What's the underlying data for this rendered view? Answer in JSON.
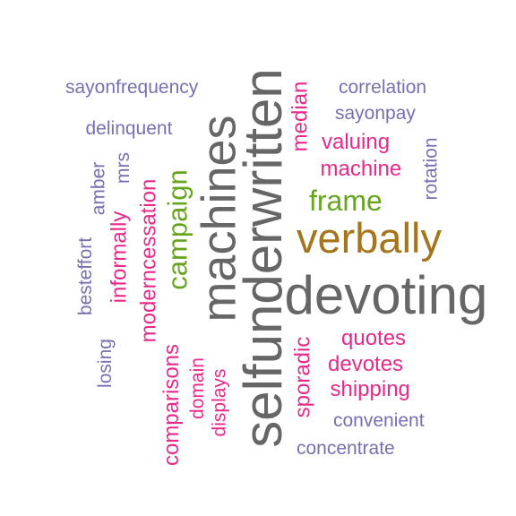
{
  "words": [
    {
      "text": "selfunderwritten",
      "color": "#666666"
    },
    {
      "text": "devoting",
      "color": "#666666"
    },
    {
      "text": "machines",
      "color": "#666666"
    },
    {
      "text": "verbally",
      "color": "#A6761D"
    },
    {
      "text": "frame",
      "color": "#66A61E"
    },
    {
      "text": "campaign",
      "color": "#66A61E"
    },
    {
      "text": "moderncessation",
      "color": "#E7298A"
    },
    {
      "text": "informally",
      "color": "#E7298A"
    },
    {
      "text": "comparisons",
      "color": "#E7298A"
    },
    {
      "text": "sporadic",
      "color": "#E7298A"
    },
    {
      "text": "median",
      "color": "#E7298A"
    },
    {
      "text": "valuing",
      "color": "#E7298A"
    },
    {
      "text": "machine",
      "color": "#E7298A"
    },
    {
      "text": "quotes",
      "color": "#E7298A"
    },
    {
      "text": "devotes",
      "color": "#E7298A"
    },
    {
      "text": "shipping",
      "color": "#E7298A"
    },
    {
      "text": "displays",
      "color": "#E7298A"
    },
    {
      "text": "domain",
      "color": "#E7298A"
    },
    {
      "text": "sayonfrequency",
      "color": "#7570B3"
    },
    {
      "text": "correlation",
      "color": "#7570B3"
    },
    {
      "text": "sayonpay",
      "color": "#7570B3"
    },
    {
      "text": "delinquent",
      "color": "#7570B3"
    },
    {
      "text": "rotation",
      "color": "#7570B3"
    },
    {
      "text": "amber",
      "color": "#7570B3"
    },
    {
      "text": "mrs",
      "color": "#7570B3"
    },
    {
      "text": "besteffort",
      "color": "#7570B3"
    },
    {
      "text": "losing",
      "color": "#7570B3"
    },
    {
      "text": "convenient",
      "color": "#7570B3"
    },
    {
      "text": "concentrate",
      "color": "#7570B3"
    }
  ]
}
